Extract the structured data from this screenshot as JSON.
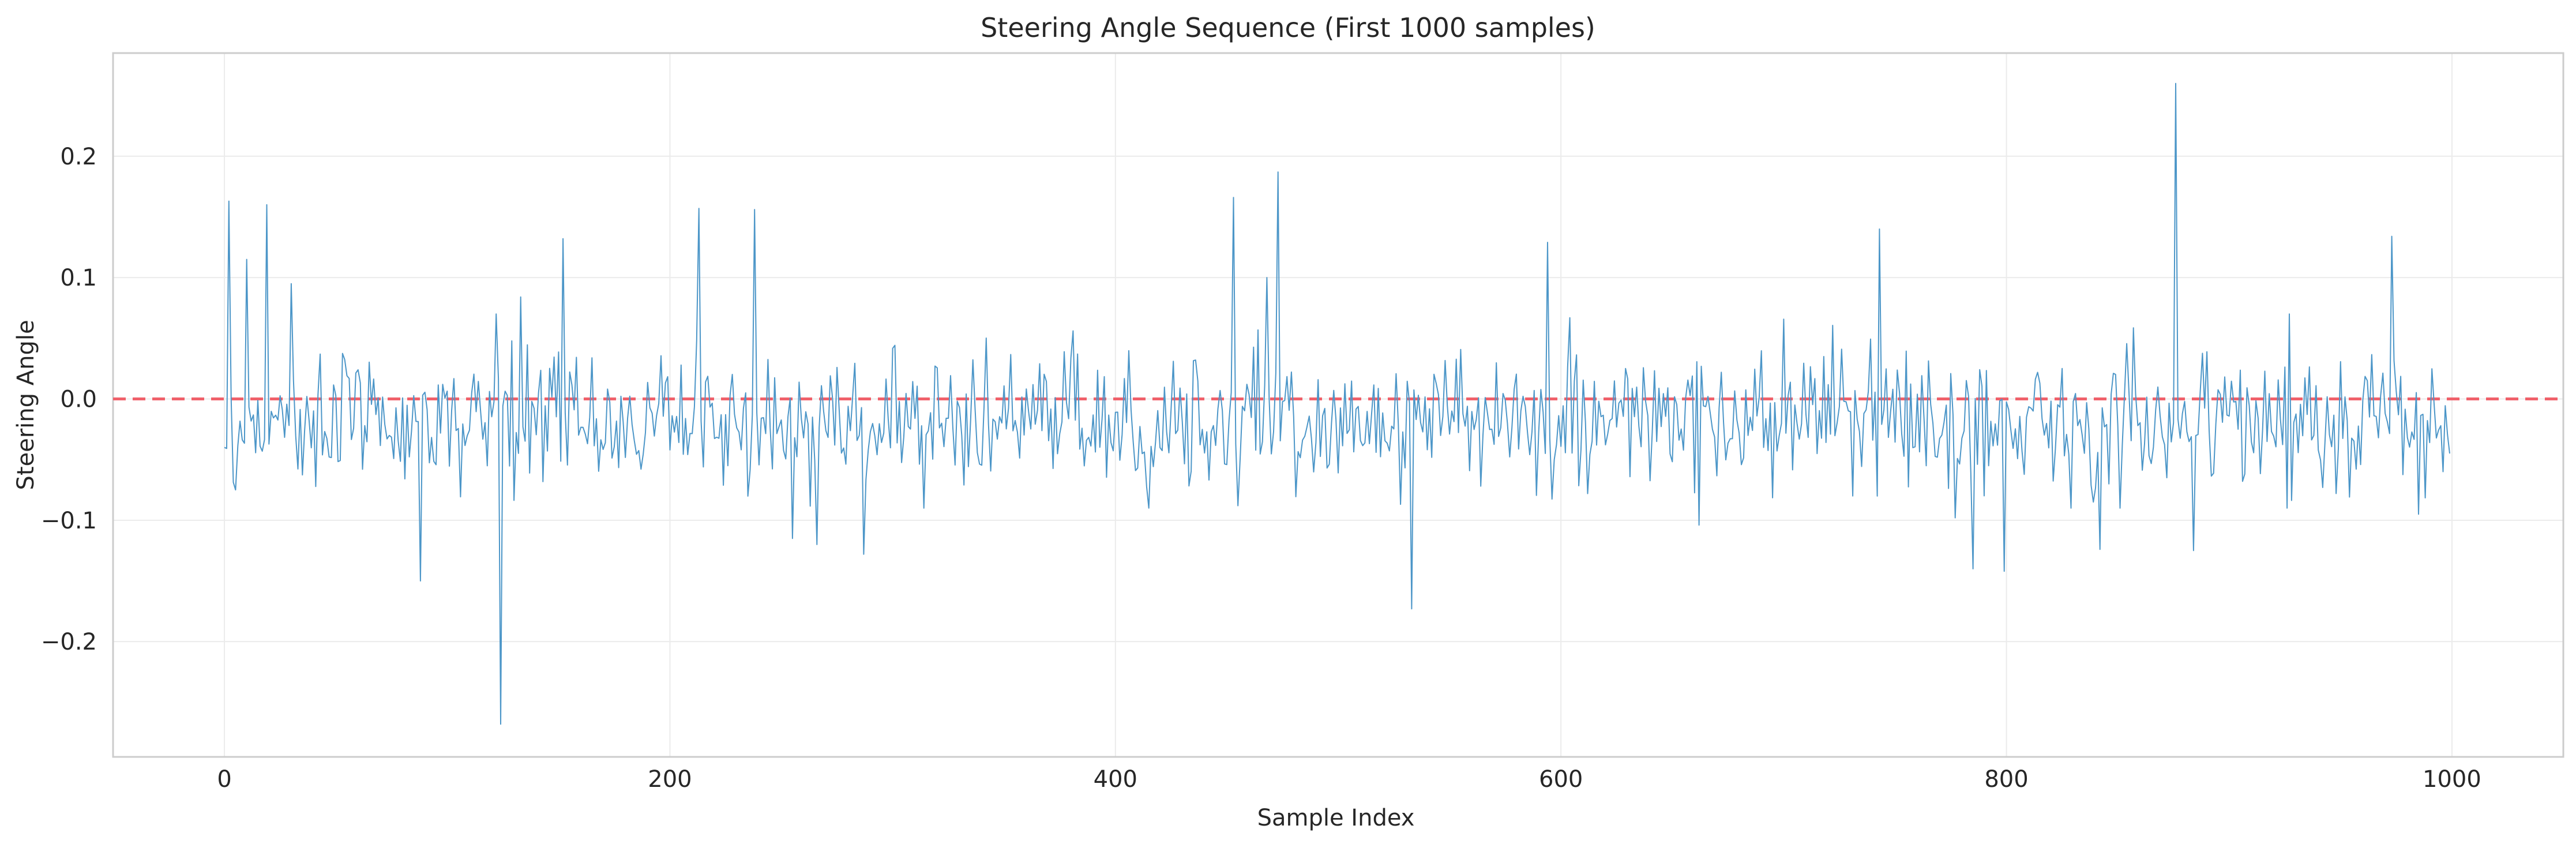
{
  "chart_data": {
    "type": "line",
    "title": "Steering Angle Sequence (First 1000 samples)",
    "xlabel": "Sample Index",
    "ylabel": "Steering Angle",
    "xlim": [
      -50,
      1050
    ],
    "ylim": [
      -0.295,
      0.285
    ],
    "x_ticks": [
      0,
      200,
      400,
      600,
      800,
      1000
    ],
    "x_tick_labels": [
      "0",
      "200",
      "400",
      "600",
      "800",
      "1000"
    ],
    "y_ticks": [
      -0.2,
      -0.1,
      0.0,
      0.1,
      0.2
    ],
    "y_tick_labels": [
      "−0.2",
      "−0.1",
      "0.0",
      "0.1",
      "0.2"
    ],
    "grid": true,
    "reference_line": {
      "y": 0.0,
      "style": "dashed",
      "color": "#f0606a"
    },
    "series_color": "#4c96c8",
    "series": [
      {
        "n_samples": 1000,
        "baseline_mean": -0.018,
        "noise_std": 0.028,
        "notable_points": [
          {
            "x": 0,
            "y": -0.04
          },
          {
            "x": 2,
            "y": 0.163
          },
          {
            "x": 5,
            "y": -0.075
          },
          {
            "x": 10,
            "y": -0.108
          },
          {
            "x": 10,
            "y": 0.115
          },
          {
            "x": 19,
            "y": 0.16
          },
          {
            "x": 30,
            "y": 0.095
          },
          {
            "x": 88,
            "y": -0.15
          },
          {
            "x": 124,
            "y": -0.268
          },
          {
            "x": 133,
            "y": 0.084
          },
          {
            "x": 152,
            "y": 0.132
          },
          {
            "x": 213,
            "y": 0.157
          },
          {
            "x": 238,
            "y": 0.156
          },
          {
            "x": 255,
            "y": -0.115
          },
          {
            "x": 266,
            "y": -0.12
          },
          {
            "x": 287,
            "y": -0.128
          },
          {
            "x": 453,
            "y": 0.166
          },
          {
            "x": 455,
            "y": -0.088
          },
          {
            "x": 468,
            "y": 0.1
          },
          {
            "x": 473,
            "y": 0.187
          },
          {
            "x": 533,
            "y": -0.173
          },
          {
            "x": 594,
            "y": 0.129
          },
          {
            "x": 662,
            "y": -0.104
          },
          {
            "x": 743,
            "y": 0.14
          },
          {
            "x": 777,
            "y": -0.098
          },
          {
            "x": 785,
            "y": -0.14
          },
          {
            "x": 799,
            "y": -0.142
          },
          {
            "x": 842,
            "y": -0.124
          },
          {
            "x": 876,
            "y": 0.26
          },
          {
            "x": 884,
            "y": -0.125
          },
          {
            "x": 973,
            "y": 0.134
          },
          {
            "x": 985,
            "y": -0.095
          },
          {
            "x": 999,
            "y": -0.045
          }
        ]
      }
    ]
  }
}
